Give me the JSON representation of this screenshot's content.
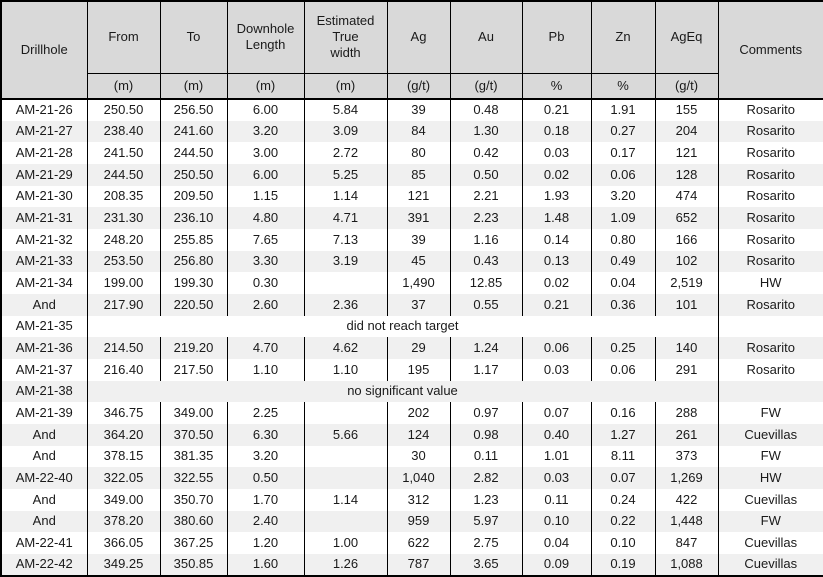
{
  "table": {
    "columns": [
      {
        "key": "drillhole",
        "label": "Drillhole",
        "unit": ""
      },
      {
        "key": "from",
        "label": "From",
        "unit": "(m)"
      },
      {
        "key": "to",
        "label": "To",
        "unit": "(m)"
      },
      {
        "key": "downhole-length",
        "label": "Downhole Length",
        "unit": "(m)"
      },
      {
        "key": "true-width",
        "label": "Estimated True width",
        "unit": "(m)"
      },
      {
        "key": "ag",
        "label": "Ag",
        "unit": "(g/t)"
      },
      {
        "key": "au",
        "label": "Au",
        "unit": "(g/t)"
      },
      {
        "key": "pb",
        "label": "Pb",
        "unit": "%"
      },
      {
        "key": "zn",
        "label": "Zn",
        "unit": "%"
      },
      {
        "key": "ageq",
        "label": "AgEq",
        "unit": "(g/t)"
      },
      {
        "key": "comments",
        "label": "Comments",
        "unit": ""
      }
    ],
    "rows": [
      {
        "cells": [
          "AM-21-26",
          "250.50",
          "256.50",
          "6.00",
          "5.84",
          "39",
          "0.48",
          "0.21",
          "1.91",
          "155",
          "Rosarito"
        ]
      },
      {
        "cells": [
          "AM-21-27",
          "238.40",
          "241.60",
          "3.20",
          "3.09",
          "84",
          "1.30",
          "0.18",
          "0.27",
          "204",
          "Rosarito"
        ]
      },
      {
        "cells": [
          "AM-21-28",
          "241.50",
          "244.50",
          "3.00",
          "2.72",
          "80",
          "0.42",
          "0.03",
          "0.17",
          "121",
          "Rosarito"
        ]
      },
      {
        "cells": [
          "AM-21-29",
          "244.50",
          "250.50",
          "6.00",
          "5.25",
          "85",
          "0.50",
          "0.02",
          "0.06",
          "128",
          "Rosarito"
        ]
      },
      {
        "cells": [
          "AM-21-30",
          "208.35",
          "209.50",
          "1.15",
          "1.14",
          "121",
          "2.21",
          "1.93",
          "3.20",
          "474",
          "Rosarito"
        ]
      },
      {
        "cells": [
          "AM-21-31",
          "231.30",
          "236.10",
          "4.80",
          "4.71",
          "391",
          "2.23",
          "1.48",
          "1.09",
          "652",
          "Rosarito"
        ]
      },
      {
        "cells": [
          "AM-21-32",
          "248.20",
          "255.85",
          "7.65",
          "7.13",
          "39",
          "1.16",
          "0.14",
          "0.80",
          "166",
          "Rosarito"
        ]
      },
      {
        "cells": [
          "AM-21-33",
          "253.50",
          "256.80",
          "3.30",
          "3.19",
          "45",
          "0.43",
          "0.13",
          "0.49",
          "102",
          "Rosarito"
        ]
      },
      {
        "cells": [
          "AM-21-34",
          "199.00",
          "199.30",
          "0.30",
          "",
          "1,490",
          "12.85",
          "0.02",
          "0.04",
          "2,519",
          "HW"
        ]
      },
      {
        "cells": [
          "And",
          "217.90",
          "220.50",
          "2.60",
          "2.36",
          "37",
          "0.55",
          "0.21",
          "0.36",
          "101",
          "Rosarito"
        ]
      },
      {
        "drillhole": "AM-21-35",
        "note": "did not reach target"
      },
      {
        "cells": [
          "AM-21-36",
          "214.50",
          "219.20",
          "4.70",
          "4.62",
          "29",
          "1.24",
          "0.06",
          "0.25",
          "140",
          "Rosarito"
        ]
      },
      {
        "cells": [
          "AM-21-37",
          "216.40",
          "217.50",
          "1.10",
          "1.10",
          "195",
          "1.17",
          "0.03",
          "0.06",
          "291",
          "Rosarito"
        ]
      },
      {
        "drillhole": "AM-21-38",
        "note": "no significant value"
      },
      {
        "cells": [
          "AM-21-39",
          "346.75",
          "349.00",
          "2.25",
          "",
          "202",
          "0.97",
          "0.07",
          "0.16",
          "288",
          "FW"
        ]
      },
      {
        "cells": [
          "And",
          "364.20",
          "370.50",
          "6.30",
          "5.66",
          "124",
          "0.98",
          "0.40",
          "1.27",
          "261",
          "Cuevillas"
        ]
      },
      {
        "cells": [
          "And",
          "378.15",
          "381.35",
          "3.20",
          "",
          "30",
          "0.11",
          "1.01",
          "8.11",
          "373",
          "FW"
        ]
      },
      {
        "cells": [
          "AM-22-40",
          "322.05",
          "322.55",
          "0.50",
          "",
          "1,040",
          "2.82",
          "0.03",
          "0.07",
          "1,269",
          "HW"
        ]
      },
      {
        "cells": [
          "And",
          "349.00",
          "350.70",
          "1.70",
          "1.14",
          "312",
          "1.23",
          "0.11",
          "0.24",
          "422",
          "Cuevillas"
        ]
      },
      {
        "cells": [
          "And",
          "378.20",
          "380.60",
          "2.40",
          "",
          "959",
          "5.97",
          "0.10",
          "0.22",
          "1,448",
          "FW"
        ]
      },
      {
        "cells": [
          "AM-22-41",
          "366.05",
          "367.25",
          "1.20",
          "1.00",
          "622",
          "2.75",
          "0.04",
          "0.10",
          "847",
          "Cuevillas"
        ]
      },
      {
        "cells": [
          "AM-22-42",
          "349.25",
          "350.85",
          "1.60",
          "1.26",
          "787",
          "3.65",
          "0.09",
          "0.19",
          "1,088",
          "Cuevillas"
        ]
      }
    ],
    "colors": {
      "header_bg": "#d9d9d9",
      "stripe_bg": "#f0f0f0",
      "border": "#000000",
      "text": "#1a1a1a"
    }
  }
}
